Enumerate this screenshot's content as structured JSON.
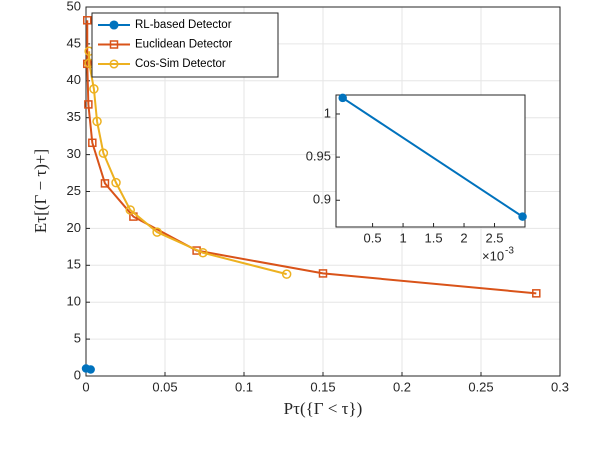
{
  "chart_data": {
    "type": "line",
    "x_label": "Pτ({Γ < τ})",
    "y_label": "Eτ[(Γ − τ)+]",
    "xlim": [
      0,
      0.3
    ],
    "xticks": [
      0,
      0.05,
      0.1,
      0.15,
      0.2,
      0.25,
      0.3
    ],
    "ylim": [
      0,
      50
    ],
    "yticks": [
      0,
      5,
      10,
      15,
      20,
      25,
      30,
      35,
      40,
      45,
      50
    ],
    "grid": true,
    "legend": "top-left",
    "series": [
      {
        "name": "RL-based Detector",
        "color": "#0072BD",
        "marker": "filled-circle",
        "x": [
          1e-05,
          0.00296
        ],
        "values": [
          1.0186,
          0.881
        ]
      },
      {
        "name": "Euclidean Detector",
        "color": "#D95319",
        "marker": "square",
        "x": [
          0.0008,
          0.0008,
          0.0015,
          0.004,
          0.012,
          0.03,
          0.07,
          0.15,
          0.285
        ],
        "values": [
          48.2,
          42.3,
          36.8,
          31.6,
          26.1,
          21.6,
          17.0,
          13.9,
          11.2
        ]
      },
      {
        "name": "Cos-Sim Detector",
        "color": "#EDB120",
        "marker": "circle",
        "x": [
          0.002,
          0.002,
          0.005,
          0.007,
          0.011,
          0.019,
          0.028,
          0.045,
          0.074,
          0.127
        ],
        "values": [
          44.0,
          42.4,
          38.9,
          34.5,
          30.2,
          26.2,
          22.5,
          19.5,
          16.7,
          13.8
        ]
      }
    ],
    "inset": {
      "xlim": [
        -0.0001,
        0.003
      ],
      "xticks": [
        {
          "value": 0.0005,
          "label": "0.5"
        },
        {
          "value": 0.001,
          "label": "1"
        },
        {
          "value": 0.0015,
          "label": "1.5"
        },
        {
          "value": 0.002,
          "label": "2"
        },
        {
          "value": 0.0025,
          "label": "2.5"
        }
      ],
      "x_multiplier": {
        "base": "×10",
        "exponent": "-3"
      },
      "ylim": [
        0.869,
        1.022
      ],
      "yticks": [
        0.9,
        0.95,
        1
      ],
      "series_index": 0
    }
  }
}
